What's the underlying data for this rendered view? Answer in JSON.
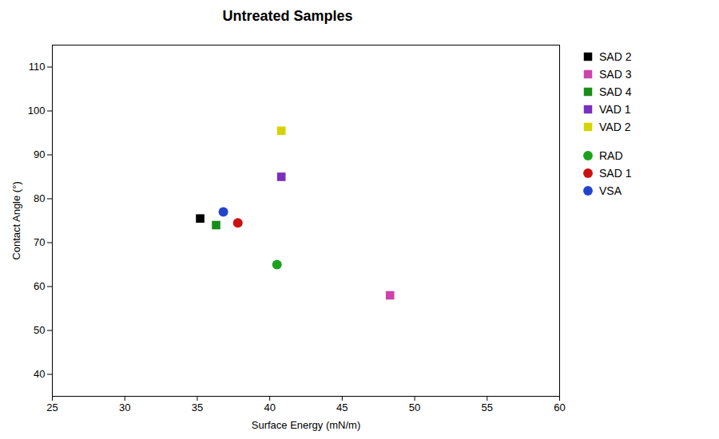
{
  "chart_data": {
    "type": "scatter",
    "title": "Untreated Samples",
    "xlabel": "Surface Energy (mN/m)",
    "ylabel": "Contact Angle (°)",
    "xlim": [
      25,
      60
    ],
    "ylim": [
      35,
      115
    ],
    "xticks": [
      25,
      30,
      35,
      40,
      45,
      50,
      55,
      60
    ],
    "yticks": [
      40,
      50,
      60,
      70,
      80,
      90,
      100,
      110
    ],
    "grid": false,
    "legend": "right",
    "series": [
      {
        "name": "SAD 2",
        "x": [
          35.2
        ],
        "values": [
          75.5
        ],
        "marker": "square",
        "color": "#000000"
      },
      {
        "name": "SAD 3",
        "x": [
          48.3
        ],
        "values": [
          58.0
        ],
        "marker": "square",
        "color": "#cc44aa"
      },
      {
        "name": "SAD 4",
        "x": [
          36.3
        ],
        "values": [
          74.0
        ],
        "marker": "square",
        "color": "#1a8c1a"
      },
      {
        "name": "VAD 1",
        "x": [
          40.8
        ],
        "values": [
          85.0
        ],
        "marker": "square",
        "color": "#7b2fbe"
      },
      {
        "name": "VAD 2",
        "x": [
          40.8
        ],
        "values": [
          95.5
        ],
        "marker": "square",
        "color": "#d4d400"
      },
      {
        "name": "RAD",
        "x": [
          40.5
        ],
        "values": [
          65.0
        ],
        "marker": "circle",
        "color": "#1da11d"
      },
      {
        "name": "SAD 1",
        "x": [
          37.8
        ],
        "values": [
          74.5
        ],
        "marker": "circle",
        "color": "#cc1111"
      },
      {
        "name": "VSA",
        "x": [
          36.8
        ],
        "values": [
          77.0
        ],
        "marker": "circle",
        "color": "#2244cc"
      }
    ]
  }
}
